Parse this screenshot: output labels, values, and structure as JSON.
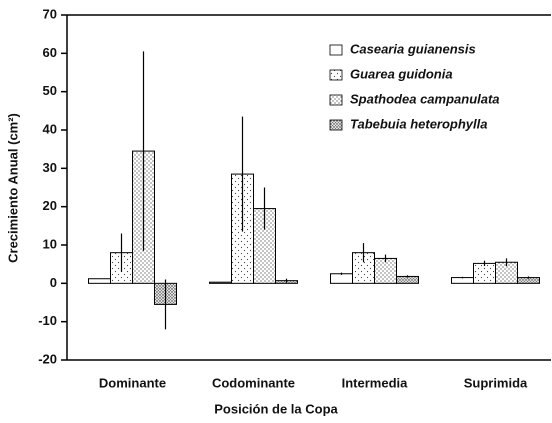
{
  "chart_data": {
    "type": "bar",
    "xlabel": "Posición de la Copa",
    "ylabel": "Crecimiento Anual (cm²)",
    "categories": [
      "Dominante",
      "Codominante",
      "Intermedia",
      "Suprimida"
    ],
    "series": [
      {
        "name": "Casearia guianensis",
        "color": "#ffffff",
        "pattern": "none",
        "values": [
          1.2,
          0.3,
          2.5,
          1.5
        ],
        "errors": [
          null,
          null,
          0.3,
          0.2
        ]
      },
      {
        "name": "Guarea guidonia",
        "color": "#ffffff",
        "pattern": "dots-sparse",
        "values": [
          8,
          28.5,
          8,
          5.2
        ],
        "errors": [
          5,
          15,
          2.5,
          0.7
        ]
      },
      {
        "name": "Spathodea campanulata",
        "color": "#ffffff",
        "pattern": "dots",
        "values": [
          34.5,
          19.5,
          6.5,
          5.5
        ],
        "errors": [
          26,
          5.5,
          1,
          1
        ]
      },
      {
        "name": "Tabebuia heterophylla",
        "color": "#ffffff",
        "pattern": "dots-dense",
        "values": [
          -5.5,
          0.7,
          1.8,
          1.5
        ],
        "errors": [
          6.5,
          0.5,
          0.3,
          0.3
        ]
      }
    ],
    "ylim": [
      -20,
      70
    ],
    "yticks": [
      -20,
      -10,
      0,
      10,
      20,
      30,
      40,
      50,
      60,
      70
    ]
  }
}
